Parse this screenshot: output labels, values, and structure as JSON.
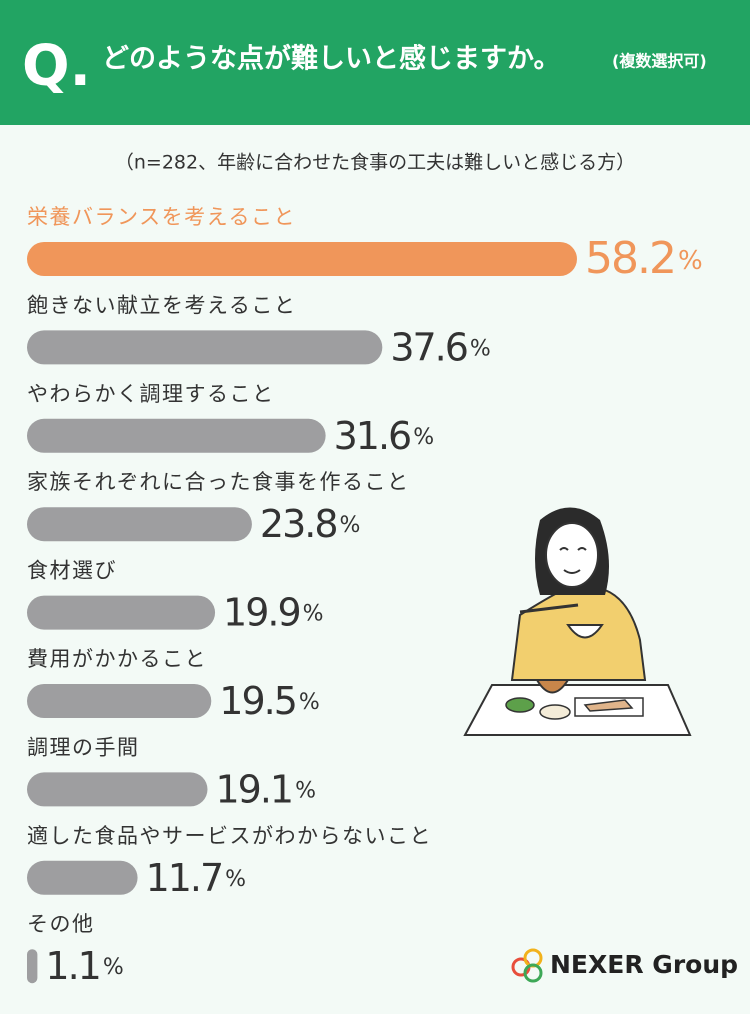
{
  "header": {
    "mark": "Q.",
    "question": "どのような点が難しいと感じますか。",
    "note": "(複数選択可)"
  },
  "chart_data": {
    "type": "bar",
    "orientation": "horizontal",
    "subtitle": "（n=282、年齢に合わせた食事の工夫は難しいと感じる方）",
    "categories": [
      "栄養バランスを考えること",
      "飽きない献立を考えること",
      "やわらかく調理すること",
      "家族それぞれに合った食事を作ること",
      "食材選び",
      "費用がかかること",
      "調理の手間",
      "適した食品やサービスがわからないこと",
      "その他"
    ],
    "values": [
      58.2,
      37.6,
      31.6,
      23.8,
      19.9,
      19.5,
      19.1,
      11.7,
      1.1
    ],
    "unit": "%",
    "colors": [
      "#f0965a",
      "#9e9ea0",
      "#9e9ea0",
      "#9e9ea0",
      "#9e9ea0",
      "#9e9ea0",
      "#9e9ea0",
      "#9e9ea0",
      "#9e9ea0"
    ]
  },
  "logo": "NEXER Group"
}
